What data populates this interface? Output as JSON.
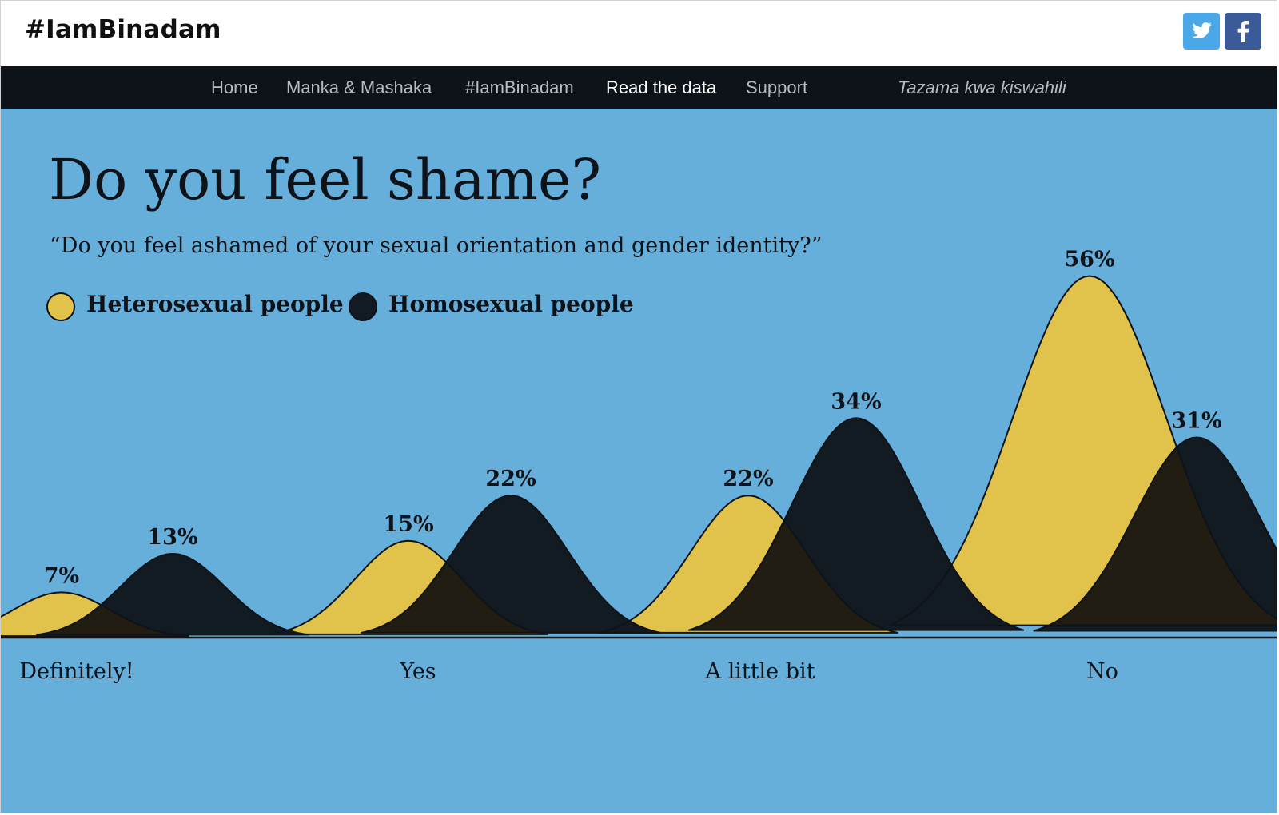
{
  "header": {
    "logo": "#IamBinadam",
    "social": [
      {
        "name": "twitter",
        "color": "#4aa8e8"
      },
      {
        "name": "facebook",
        "color": "#3b5a98"
      }
    ]
  },
  "nav": {
    "items": [
      {
        "label": "Home",
        "active": false
      },
      {
        "label": "Manka & Mashaka",
        "active": false
      },
      {
        "label": "#IamBinadam",
        "active": false
      },
      {
        "label": "Read the data",
        "active": true
      },
      {
        "label": "Support",
        "active": false
      }
    ],
    "language_link": "Tazama kwa kiswahili"
  },
  "page": {
    "title": "Do you feel shame?",
    "subtitle": "“Do you feel ashamed of your sexual orientation and gender identity?”"
  },
  "colors": {
    "background": "#67afdb",
    "heterosexual": "#e1c24a",
    "homosexual": "#121a22",
    "overlap": "#211d12",
    "nav_bg": "#0e131a"
  },
  "chart_data": {
    "type": "area",
    "categories": [
      "Definitely!",
      "Yes",
      "A little bit",
      "No"
    ],
    "series": [
      {
        "name": "Heterosexual people",
        "values": [
          7,
          15,
          22,
          56
        ],
        "value_labels": [
          "7%",
          "15%",
          "22%",
          "56%"
        ],
        "color": "#e1c24a"
      },
      {
        "name": "Homosexual people",
        "values": [
          13,
          22,
          34,
          31
        ],
        "value_labels": [
          "13%",
          "22%",
          "34%",
          "31%"
        ],
        "color": "#121a22"
      }
    ],
    "unit": "%",
    "ylim": [
      0,
      56
    ],
    "grid": false,
    "legend_position": "top-left"
  }
}
